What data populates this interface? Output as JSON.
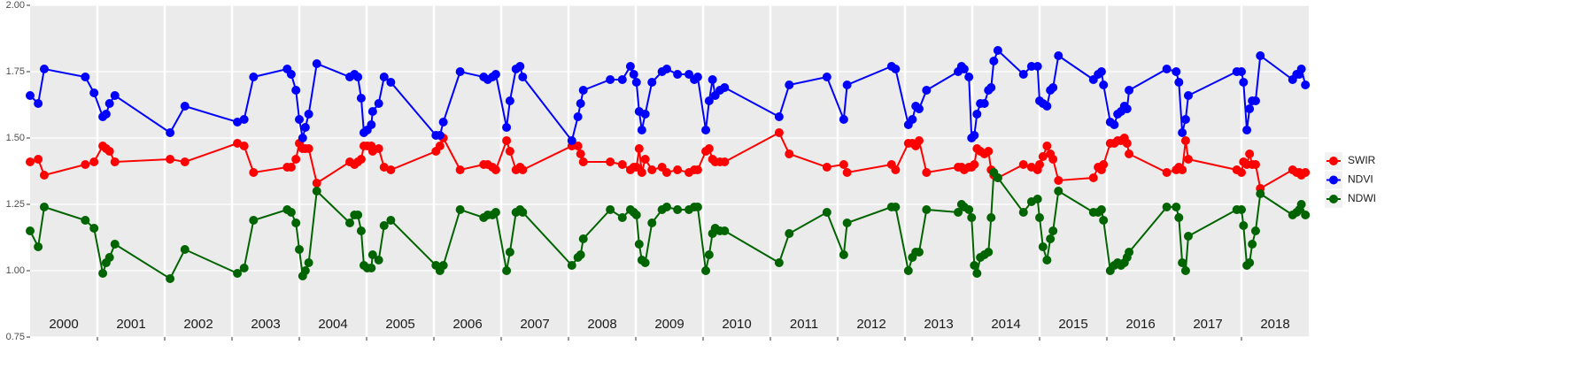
{
  "chart_data": {
    "type": "line",
    "x": [
      2000.0,
      2000.12,
      2000.21,
      2000.82,
      2000.95,
      2001.08,
      2001.13,
      2001.18,
      2001.26,
      2002.08,
      2002.3,
      2003.08,
      2003.18,
      2003.32,
      2003.82,
      2003.88,
      2003.95,
      2004.0,
      2004.05,
      2004.09,
      2004.14,
      2004.26,
      2004.75,
      2004.82,
      2004.87,
      2004.92,
      2004.96,
      2005.01,
      2005.07,
      2005.09,
      2005.18,
      2005.26,
      2005.36,
      2006.03,
      2006.09,
      2006.14,
      2006.39,
      2006.74,
      2006.8,
      2006.87,
      2006.92,
      2007.08,
      2007.13,
      2007.22,
      2007.28,
      2007.32,
      2008.05,
      2008.14,
      2008.18,
      2008.22,
      2008.62,
      2008.8,
      2008.92,
      2008.97,
      2009.01,
      2009.05,
      2009.09,
      2009.14,
      2009.24,
      2009.39,
      2009.46,
      2009.62,
      2009.79,
      2009.87,
      2009.92,
      2010.04,
      2010.09,
      2010.14,
      2010.18,
      2010.25,
      2010.32,
      2011.13,
      2011.28,
      2011.84,
      2012.09,
      2012.14,
      2012.8,
      2012.86,
      2013.05,
      2013.11,
      2013.16,
      2013.21,
      2013.32,
      2013.79,
      2013.84,
      2013.88,
      2013.95,
      2013.99,
      2014.03,
      2014.07,
      2014.12,
      2014.18,
      2014.24,
      2014.28,
      2014.32,
      2014.38,
      2014.76,
      2014.88,
      2014.97,
      2015.0,
      2015.05,
      2015.11,
      2015.16,
      2015.2,
      2015.28,
      2015.8,
      2015.87,
      2015.92,
      2015.95,
      2016.05,
      2016.11,
      2016.16,
      2016.21,
      2016.26,
      2016.3,
      2016.33,
      2016.89,
      2017.03,
      2017.07,
      2017.12,
      2017.17,
      2017.21,
      2017.93,
      2018.0,
      2018.03,
      2018.08,
      2018.12,
      2018.16,
      2018.21,
      2018.28,
      2018.76,
      2018.82,
      2018.86,
      2018.89,
      2018.95
    ],
    "series": [
      {
        "name": "SWIR",
        "color": "#ff0000",
        "values": [
          1.41,
          1.42,
          1.36,
          1.4,
          1.41,
          1.47,
          1.46,
          1.45,
          1.41,
          1.42,
          1.41,
          1.48,
          1.47,
          1.37,
          1.39,
          1.39,
          1.42,
          1.48,
          1.46,
          1.46,
          1.46,
          1.33,
          1.41,
          1.4,
          1.41,
          1.42,
          1.47,
          1.47,
          1.47,
          1.45,
          1.46,
          1.39,
          1.38,
          1.45,
          1.47,
          1.5,
          1.38,
          1.4,
          1.4,
          1.39,
          1.38,
          1.49,
          1.45,
          1.38,
          1.39,
          1.38,
          1.47,
          1.47,
          1.44,
          1.41,
          1.41,
          1.4,
          1.38,
          1.39,
          1.39,
          1.46,
          1.37,
          1.42,
          1.38,
          1.39,
          1.37,
          1.38,
          1.37,
          1.38,
          1.38,
          1.45,
          1.46,
          1.42,
          1.41,
          1.41,
          1.41,
          1.52,
          1.44,
          1.39,
          1.4,
          1.37,
          1.4,
          1.38,
          1.48,
          1.48,
          1.47,
          1.49,
          1.37,
          1.39,
          1.39,
          1.38,
          1.39,
          1.39,
          1.4,
          1.46,
          1.45,
          1.44,
          1.45,
          1.38,
          1.36,
          1.35,
          1.4,
          1.39,
          1.38,
          1.4,
          1.43,
          1.47,
          1.44,
          1.42,
          1.34,
          1.35,
          1.39,
          1.38,
          1.4,
          1.48,
          1.48,
          1.49,
          1.49,
          1.5,
          1.48,
          1.44,
          1.37,
          1.38,
          1.39,
          1.38,
          1.49,
          1.42,
          1.38,
          1.37,
          1.41,
          1.4,
          1.44,
          1.4,
          1.4,
          1.31,
          1.38,
          1.37,
          1.37,
          1.36,
          1.37
        ]
      },
      {
        "name": "NDVI",
        "color": "#0000ff",
        "values": [
          1.66,
          1.63,
          1.76,
          1.73,
          1.67,
          1.58,
          1.59,
          1.63,
          1.66,
          1.52,
          1.62,
          1.56,
          1.57,
          1.73,
          1.76,
          1.74,
          1.68,
          1.57,
          1.5,
          1.54,
          1.59,
          1.78,
          1.73,
          1.74,
          1.73,
          1.65,
          1.52,
          1.53,
          1.55,
          1.6,
          1.63,
          1.73,
          1.71,
          1.51,
          1.51,
          1.56,
          1.75,
          1.73,
          1.72,
          1.73,
          1.74,
          1.54,
          1.64,
          1.76,
          1.77,
          1.73,
          1.49,
          1.58,
          1.63,
          1.68,
          1.72,
          1.72,
          1.77,
          1.74,
          1.71,
          1.6,
          1.53,
          1.59,
          1.71,
          1.75,
          1.76,
          1.74,
          1.74,
          1.72,
          1.73,
          1.53,
          1.64,
          1.72,
          1.66,
          1.68,
          1.69,
          1.58,
          1.7,
          1.73,
          1.57,
          1.7,
          1.77,
          1.76,
          1.55,
          1.57,
          1.62,
          1.61,
          1.68,
          1.75,
          1.77,
          1.76,
          1.73,
          1.5,
          1.51,
          1.59,
          1.63,
          1.63,
          1.68,
          1.69,
          1.79,
          1.83,
          1.74,
          1.77,
          1.77,
          1.64,
          1.63,
          1.62,
          1.68,
          1.69,
          1.81,
          1.72,
          1.74,
          1.75,
          1.7,
          1.56,
          1.55,
          1.59,
          1.6,
          1.62,
          1.61,
          1.68,
          1.76,
          1.75,
          1.71,
          1.52,
          1.57,
          1.66,
          1.75,
          1.75,
          1.71,
          1.53,
          1.61,
          1.64,
          1.64,
          1.81,
          1.72,
          1.74,
          1.74,
          1.76,
          1.7
        ]
      },
      {
        "name": "NDWI",
        "color": "#006400",
        "values": [
          1.15,
          1.09,
          1.24,
          1.19,
          1.16,
          0.99,
          1.03,
          1.05,
          1.1,
          0.97,
          1.08,
          0.99,
          1.01,
          1.19,
          1.23,
          1.22,
          1.18,
          1.08,
          0.98,
          1.0,
          1.03,
          1.3,
          1.18,
          1.21,
          1.21,
          1.15,
          1.02,
          1.01,
          1.01,
          1.06,
          1.04,
          1.17,
          1.19,
          1.02,
          1.0,
          1.02,
          1.23,
          1.2,
          1.21,
          1.21,
          1.22,
          1.0,
          1.07,
          1.22,
          1.23,
          1.22,
          1.02,
          1.05,
          1.06,
          1.12,
          1.23,
          1.2,
          1.23,
          1.22,
          1.21,
          1.1,
          1.04,
          1.03,
          1.18,
          1.23,
          1.24,
          1.23,
          1.23,
          1.24,
          1.24,
          1.0,
          1.06,
          1.14,
          1.16,
          1.15,
          1.15,
          1.03,
          1.14,
          1.22,
          1.06,
          1.18,
          1.24,
          1.24,
          1.0,
          1.05,
          1.07,
          1.07,
          1.23,
          1.22,
          1.25,
          1.24,
          1.23,
          1.2,
          1.02,
          0.99,
          1.05,
          1.06,
          1.07,
          1.2,
          1.37,
          1.35,
          1.22,
          1.26,
          1.27,
          1.2,
          1.09,
          1.04,
          1.12,
          1.15,
          1.3,
          1.22,
          1.22,
          1.23,
          1.19,
          1.0,
          1.02,
          1.03,
          1.02,
          1.03,
          1.05,
          1.07,
          1.24,
          1.24,
          1.2,
          1.03,
          1.0,
          1.13,
          1.23,
          1.23,
          1.17,
          1.02,
          1.03,
          1.1,
          1.15,
          1.29,
          1.21,
          1.22,
          1.23,
          1.25,
          1.21
        ]
      }
    ],
    "xlim": [
      2000,
      2019
    ],
    "xticks": [
      2001,
      2002,
      2003,
      2004,
      2005,
      2006,
      2007,
      2008,
      2009,
      2010,
      2011,
      2012,
      2013,
      2014,
      2015,
      2016,
      2017,
      2018
    ],
    "year_labels": [
      {
        "value": 2000.5,
        "label": "2000"
      },
      {
        "value": 2001.5,
        "label": "2001"
      },
      {
        "value": 2002.5,
        "label": "2002"
      },
      {
        "value": 2003.5,
        "label": "2003"
      },
      {
        "value": 2004.5,
        "label": "2004"
      },
      {
        "value": 2005.5,
        "label": "2005"
      },
      {
        "value": 2006.5,
        "label": "2006"
      },
      {
        "value": 2007.5,
        "label": "2007"
      },
      {
        "value": 2008.5,
        "label": "2008"
      },
      {
        "value": 2009.5,
        "label": "2009"
      },
      {
        "value": 2010.5,
        "label": "2010"
      },
      {
        "value": 2011.5,
        "label": "2011"
      },
      {
        "value": 2012.5,
        "label": "2012"
      },
      {
        "value": 2013.5,
        "label": "2013"
      },
      {
        "value": 2014.5,
        "label": "2014"
      },
      {
        "value": 2015.5,
        "label": "2015"
      },
      {
        "value": 2016.5,
        "label": "2016"
      },
      {
        "value": 2017.5,
        "label": "2017"
      },
      {
        "value": 2018.5,
        "label": "2018"
      }
    ],
    "ylim": [
      0.75,
      2.0
    ],
    "yticks": [
      {
        "value": 0.75,
        "label": "0.75"
      },
      {
        "value": 1,
        "label": "1.00"
      },
      {
        "value": 1.25,
        "label": "1.25"
      },
      {
        "value": 1.5,
        "label": "1.50"
      },
      {
        "value": 1.75,
        "label": "1.75"
      },
      {
        "value": 2,
        "label": "2.00"
      }
    ],
    "grid": true,
    "legend": "right"
  }
}
